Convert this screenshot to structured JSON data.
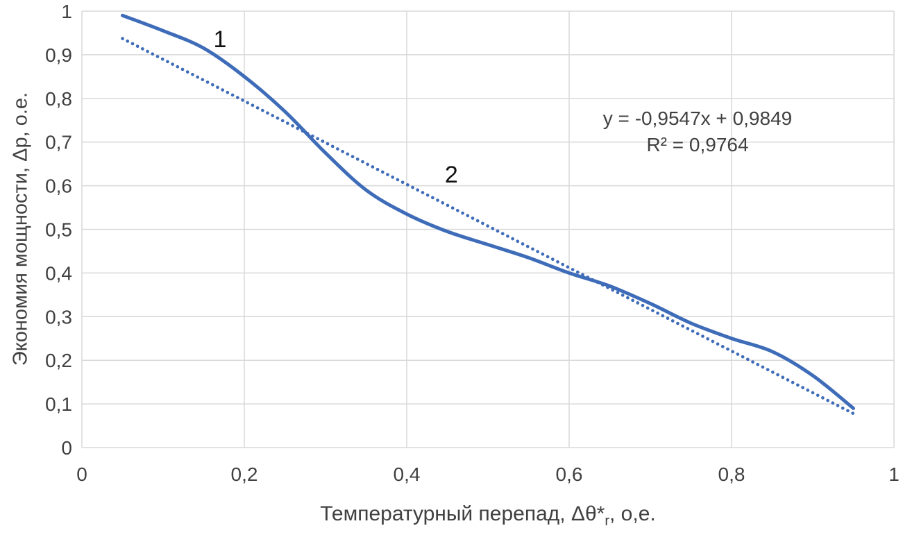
{
  "chart_data": {
    "type": "line",
    "title": "",
    "ylabel": "Экономия мощности, Δp, о.е.",
    "xlabel_prefix": "Температурный перепад, Δθ*",
    "xlabel_sub": "r",
    "xlabel_suffix": ", о,е.",
    "xlim": [
      0,
      1
    ],
    "ylim": [
      0,
      1
    ],
    "grid": true,
    "legend_position": "none",
    "x_tick_values": [
      0,
      0.2,
      0.4,
      0.6,
      0.8,
      1
    ],
    "x_tick_labels": [
      "0",
      "0,2",
      "0,4",
      "0,6",
      "0,8",
      "1"
    ],
    "y_tick_values": [
      0,
      0.1,
      0.2,
      0.3,
      0.4,
      0.5,
      0.6,
      0.7,
      0.8,
      0.9,
      1
    ],
    "y_tick_labels": [
      "0",
      "0,1",
      "0,2",
      "0,3",
      "0,4",
      "0,5",
      "0,6",
      "0,7",
      "0,8",
      "0,9",
      "1"
    ],
    "series": [
      {
        "name": "1",
        "style": "solid",
        "points": [
          [
            0.05,
            0.99
          ],
          [
            0.1,
            0.955
          ],
          [
            0.15,
            0.915
          ],
          [
            0.2,
            0.85
          ],
          [
            0.25,
            0.77
          ],
          [
            0.3,
            0.675
          ],
          [
            0.35,
            0.59
          ],
          [
            0.4,
            0.535
          ],
          [
            0.45,
            0.495
          ],
          [
            0.5,
            0.465
          ],
          [
            0.55,
            0.435
          ],
          [
            0.6,
            0.4
          ],
          [
            0.65,
            0.37
          ],
          [
            0.7,
            0.33
          ],
          [
            0.75,
            0.285
          ],
          [
            0.8,
            0.25
          ],
          [
            0.85,
            0.22
          ],
          [
            0.9,
            0.165
          ],
          [
            0.95,
            0.09
          ]
        ]
      },
      {
        "name": "2",
        "style": "dotted",
        "trendline": {
          "slope": -0.9547,
          "intercept": 0.9849,
          "x_start": 0.05,
          "x_end": 0.95
        }
      }
    ],
    "series_labels": [
      {
        "text": "1",
        "x": 0.17,
        "y": 0.935
      },
      {
        "text": "2",
        "x": 0.455,
        "y": 0.625
      }
    ],
    "annotations": {
      "equation": "y = -0,9547x + 0,9849",
      "r_squared": "R² = 0,9764"
    },
    "colors": {
      "accent": "#3E6CB8",
      "grid": "#D9D9D9",
      "text": "#404040",
      "label": "#111111",
      "background": "#FFFFFF"
    }
  }
}
